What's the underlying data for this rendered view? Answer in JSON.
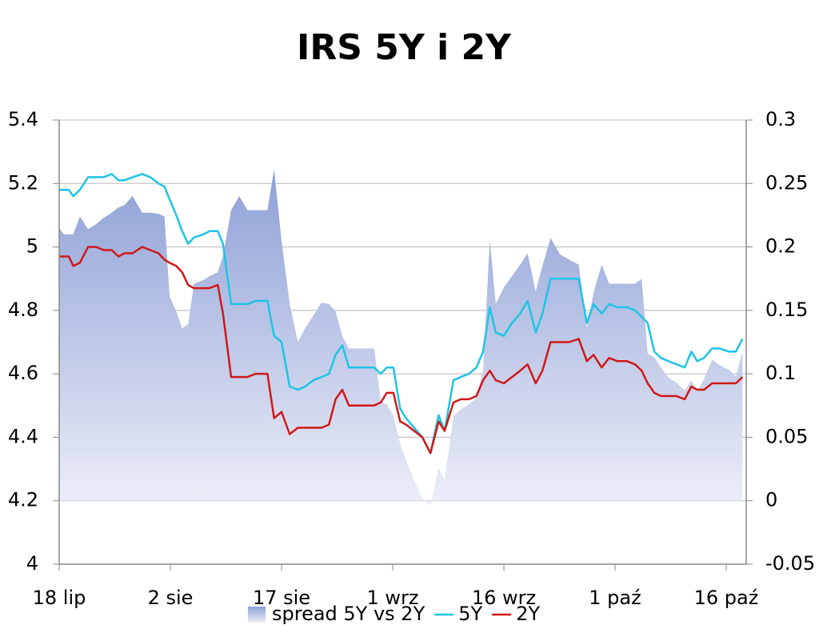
{
  "chart_data": {
    "type": "line",
    "title": "IRS 5Y i 2Y",
    "x": [
      0,
      0.6,
      1.3,
      1.9,
      2.8,
      3.9,
      5.0,
      6.0,
      7.1,
      8.0,
      8.8,
      9.9,
      11.2,
      12.3,
      13.4,
      14.2,
      14.9,
      15.8,
      16.6,
      17.4,
      18.2,
      19.5,
      20.3,
      21.4,
      22.1,
      23.2,
      24.3,
      25.4,
      26.5,
      28.1,
      29.0,
      30.0,
      31.1,
      32.2,
      33.2,
      34.3,
      35.4,
      36.4,
      37.3,
      38.2,
      39.1,
      40.1,
      41.4,
      42.5,
      43.4,
      44.2,
      45.1,
      46.0,
      46.8,
      47.9,
      49.0,
      50.1,
      51.2,
      52.0,
      53.2,
      54.2,
      55.3,
      56.3,
      57.2,
      58.1,
      58.9,
      60.0,
      61.1,
      62.2,
      63.2,
      64.3,
      65.2,
      66.3,
      67.6,
      68.8,
      70.1,
      71.2,
      72.1,
      73.2,
      74.2,
      75.3,
      76.6,
      77.7,
      78.6,
      79.4,
      80.3,
      81.2,
      82.2,
      83.3,
      84.4,
      85.3,
      86.1,
      87.0,
      88.1,
      89.1,
      90.4,
      91.3,
      92.2
    ],
    "series": [
      {
        "name": "spread 5Y vs 2Y",
        "type": "area",
        "axis": "y2",
        "color": "#8fa2d8",
        "values": [
          0.215,
          0.21,
          0.21,
          0.21,
          0.224,
          0.214,
          0.218,
          0.223,
          0.227,
          0.231,
          0.233,
          0.24,
          0.227,
          0.227,
          0.226,
          0.224,
          0.161,
          0.149,
          0.136,
          0.139,
          0.171,
          0.174,
          0.177,
          0.18,
          0.193,
          0.229,
          0.24,
          0.229,
          0.229,
          0.229,
          0.261,
          0.205,
          0.155,
          0.125,
          0.136,
          0.146,
          0.156,
          0.155,
          0.149,
          0.13,
          0.12,
          0.12,
          0.12,
          0.12,
          0.078,
          0.076,
          0.067,
          0.045,
          0.032,
          0.016,
          0.002,
          -0.004,
          0.026,
          0.016,
          0.067,
          0.072,
          0.076,
          0.081,
          0.103,
          0.205,
          0.155,
          0.168,
          0.177,
          0.186,
          0.195,
          0.165,
          0.185,
          0.207,
          0.194,
          0.19,
          0.186,
          0.136,
          0.164,
          0.186,
          0.171,
          0.171,
          0.171,
          0.171,
          0.175,
          0.116,
          0.113,
          0.105,
          0.097,
          0.093,
          0.087,
          0.095,
          0.086,
          0.096,
          0.111,
          0.107,
          0.103,
          0.098,
          0.117
        ]
      },
      {
        "name": "5Y",
        "type": "line",
        "color": "#1ec4e6",
        "values": [
          5.18,
          5.18,
          5.18,
          5.16,
          5.18,
          5.22,
          5.22,
          5.22,
          5.23,
          5.21,
          5.21,
          5.22,
          5.23,
          5.22,
          5.2,
          5.19,
          5.15,
          5.1,
          5.05,
          5.01,
          5.03,
          5.04,
          5.05,
          5.05,
          5.01,
          4.82,
          4.82,
          4.82,
          4.83,
          4.83,
          4.72,
          4.7,
          4.56,
          4.55,
          4.56,
          4.58,
          4.59,
          4.6,
          4.66,
          4.69,
          4.62,
          4.62,
          4.62,
          4.62,
          4.6,
          4.62,
          4.62,
          4.49,
          4.46,
          4.43,
          4.4,
          4.35,
          4.47,
          4.42,
          4.58,
          4.59,
          4.6,
          4.62,
          4.67,
          4.81,
          4.73,
          4.72,
          4.76,
          4.79,
          4.83,
          4.73,
          4.79,
          4.9,
          4.9,
          4.9,
          4.9,
          4.76,
          4.82,
          4.79,
          4.82,
          4.81,
          4.81,
          4.8,
          4.78,
          4.76,
          4.67,
          4.65,
          4.64,
          4.63,
          4.62,
          4.67,
          4.64,
          4.65,
          4.68,
          4.68,
          4.67,
          4.67,
          4.71
        ]
      },
      {
        "name": "2Y",
        "type": "line",
        "color": "#d01818",
        "values": [
          4.97,
          4.97,
          4.97,
          4.94,
          4.95,
          5.0,
          5.0,
          4.99,
          4.99,
          4.97,
          4.98,
          4.98,
          5.0,
          4.99,
          4.98,
          4.96,
          4.95,
          4.94,
          4.92,
          4.88,
          4.87,
          4.87,
          4.87,
          4.88,
          4.79,
          4.59,
          4.59,
          4.59,
          4.6,
          4.6,
          4.46,
          4.48,
          4.41,
          4.43,
          4.43,
          4.43,
          4.43,
          4.44,
          4.52,
          4.55,
          4.5,
          4.5,
          4.5,
          4.5,
          4.51,
          4.54,
          4.54,
          4.45,
          4.44,
          4.42,
          4.4,
          4.35,
          4.45,
          4.42,
          4.51,
          4.52,
          4.52,
          4.53,
          4.58,
          4.61,
          4.58,
          4.57,
          4.59,
          4.61,
          4.63,
          4.57,
          4.61,
          4.7,
          4.7,
          4.7,
          4.71,
          4.64,
          4.66,
          4.62,
          4.65,
          4.64,
          4.64,
          4.63,
          4.61,
          4.57,
          4.54,
          4.53,
          4.53,
          4.53,
          4.52,
          4.56,
          4.55,
          4.55,
          4.57,
          4.57,
          4.57,
          4.57,
          4.59
        ]
      }
    ],
    "xlim": [
      0,
      92.7
    ],
    "xticks": [
      {
        "value": 0,
        "label": "18 lip"
      },
      {
        "value": 15,
        "label": "2 sie"
      },
      {
        "value": 30,
        "label": "17 sie"
      },
      {
        "value": 45,
        "label": "1 wrz"
      },
      {
        "value": 60,
        "label": "16 wrz"
      },
      {
        "value": 75,
        "label": "1 paź"
      },
      {
        "value": 90,
        "label": "16 paź"
      }
    ],
    "ylim": [
      4,
      5.4
    ],
    "yticks": [
      4,
      4.2,
      4.4,
      4.6,
      4.8,
      5,
      5.2,
      5.4
    ],
    "y2lim": [
      -0.05,
      0.3
    ],
    "y2ticks": [
      -0.05,
      0,
      0.05,
      0.1,
      0.15,
      0.2,
      0.25,
      0.3
    ],
    "grid": true,
    "legend": "bottom"
  }
}
